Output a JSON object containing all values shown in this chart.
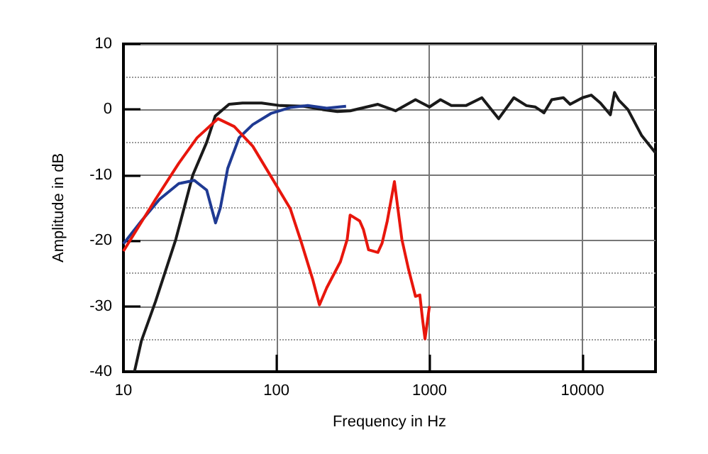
{
  "chart_data": {
    "type": "line",
    "xlabel": "Frequency in Hz",
    "ylabel": "Amplitude in dB",
    "log": "x",
    "grid": true,
    "marker": "none",
    "line_style": "solid",
    "xlim": [
      10,
      30000
    ],
    "xticks": [
      10,
      100,
      1000,
      10000
    ],
    "ylim": [
      -40,
      10
    ],
    "yticks": [
      -40,
      -30,
      -20,
      -10,
      0,
      10
    ],
    "series": [
      {
        "color": "#1a1a1a",
        "x": [
          11.8,
          13.1,
          16.2,
          22,
          28.4,
          35,
          39.8,
          49,
          60,
          80,
          106,
          150,
          200,
          250,
          303,
          460,
          600,
          810,
          1000,
          1180,
          1390,
          1730,
          2200,
          2830,
          3560,
          4300,
          4900,
          5600,
          6300,
          7500,
          8300,
          10000,
          11400,
          13100,
          15200,
          16200,
          17300,
          19800,
          24400,
          30000
        ],
        "values": [
          -40,
          -35.3,
          -29.3,
          -19.8,
          -10,
          -5,
          -1,
          0.8,
          1,
          1,
          0.6,
          0.5,
          0,
          -0.3,
          -0.2,
          0.8,
          -0.2,
          1.5,
          0.4,
          1.5,
          0.6,
          0.6,
          1.8,
          -1.4,
          1.8,
          0.6,
          0.4,
          -0.5,
          1.5,
          1.8,
          0.8,
          1.8,
          2.2,
          1,
          -0.8,
          2.6,
          1.4,
          0,
          -4,
          -6.6
        ]
      },
      {
        "color": "#1f3a93",
        "x": [
          10,
          13.1,
          17.2,
          23,
          29,
          35,
          40,
          43,
          48,
          57,
          70,
          92,
          123,
          160,
          213,
          285
        ],
        "values": [
          -20.5,
          -17,
          -13.7,
          -11.3,
          -10.8,
          -12.3,
          -17.3,
          -15,
          -9,
          -4.3,
          -2.3,
          -0.6,
          0.3,
          0.6,
          0.2,
          0.5
        ]
      },
      {
        "color": "#e8160c",
        "x": [
          10,
          16.2,
          23,
          30.3,
          41.5,
          53,
          70,
          92,
          123,
          146,
          172,
          191,
          213,
          262,
          290,
          303,
          350,
          370,
          400,
          460,
          490,
          530,
          590,
          660,
          730,
          810,
          865,
          900,
          935,
          1000
        ],
        "values": [
          -21.6,
          -13.7,
          -8.2,
          -4.3,
          -1.4,
          -2.6,
          -5.6,
          -10.2,
          -15.1,
          -20.4,
          -25.8,
          -29.8,
          -27.2,
          -23.2,
          -19.8,
          -16.1,
          -17,
          -18.3,
          -21.4,
          -21.8,
          -20.4,
          -17,
          -11,
          -19.8,
          -24.4,
          -28.5,
          -28.3,
          -31.9,
          -35,
          -30
        ]
      }
    ]
  }
}
